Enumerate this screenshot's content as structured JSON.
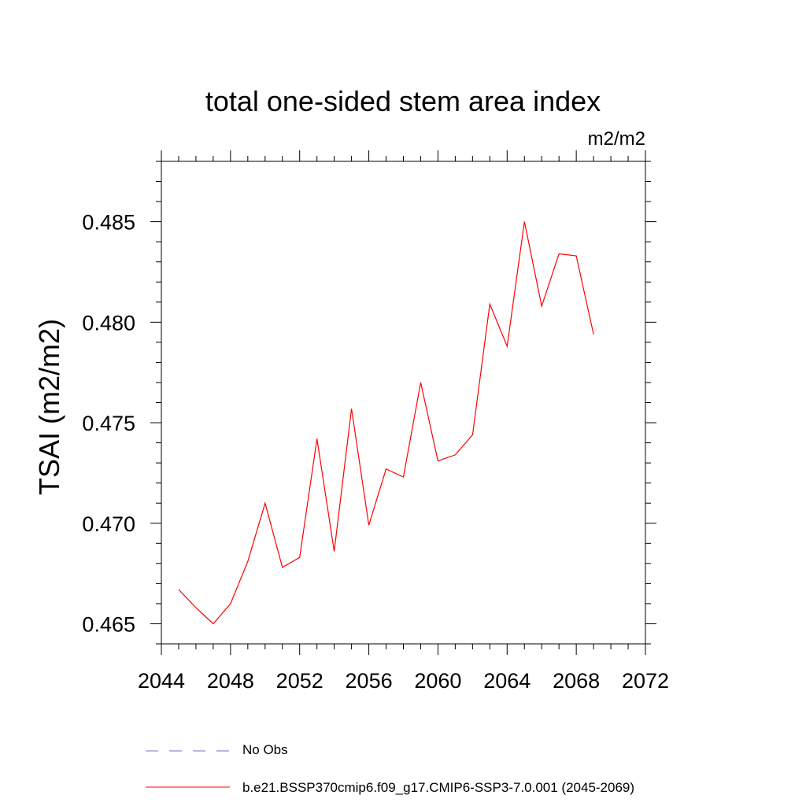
{
  "chart_data": {
    "type": "line",
    "title": "total one-sided stem area index",
    "units_label": "m2/m2",
    "ylabel": "TSAI  (m2/m2)",
    "xlabel": "",
    "xlim": [
      2044,
      2072
    ],
    "ylim": [
      0.464,
      0.488
    ],
    "x_ticks": [
      2044,
      2048,
      2052,
      2056,
      2060,
      2064,
      2068,
      2072
    ],
    "x_tick_labels": [
      "2044",
      "2048",
      "2052",
      "2056",
      "2060",
      "2064",
      "2068",
      "2072"
    ],
    "y_ticks": [
      0.465,
      0.47,
      0.475,
      0.48,
      0.485
    ],
    "y_tick_labels": [
      "0.465",
      "0.470",
      "0.475",
      "0.480",
      "0.485"
    ],
    "grid": false,
    "legend_position": "bottom",
    "series": [
      {
        "name": "b.e21.BSSP370cmip6.f09_g17.CMIP6-SSP3-7.0.001 (2045-2069)",
        "color": "#ff0000",
        "style": "solid",
        "x": [
          2045,
          2046,
          2047,
          2048,
          2049,
          2050,
          2051,
          2052,
          2053,
          2054,
          2055,
          2056,
          2057,
          2058,
          2059,
          2060,
          2061,
          2062,
          2063,
          2064,
          2065,
          2066,
          2067,
          2068,
          2069
        ],
        "y": [
          0.4667,
          0.4658,
          0.465,
          0.466,
          0.4681,
          0.471,
          0.4678,
          0.4683,
          0.4742,
          0.4686,
          0.4757,
          0.4699,
          0.4727,
          0.4723,
          0.477,
          0.4731,
          0.4734,
          0.4744,
          0.4809,
          0.4788,
          0.485,
          0.4808,
          0.4834,
          0.4833,
          0.4794
        ]
      }
    ],
    "legend": [
      {
        "label": "No Obs",
        "color": "#7b6fc6",
        "style": "dashed"
      },
      {
        "label": "b.e21.BSSP370cmip6.f09_g17.CMIP6-SSP3-7.0.001 (2045-2069)",
        "color": "#ff0000",
        "style": "solid"
      }
    ]
  }
}
